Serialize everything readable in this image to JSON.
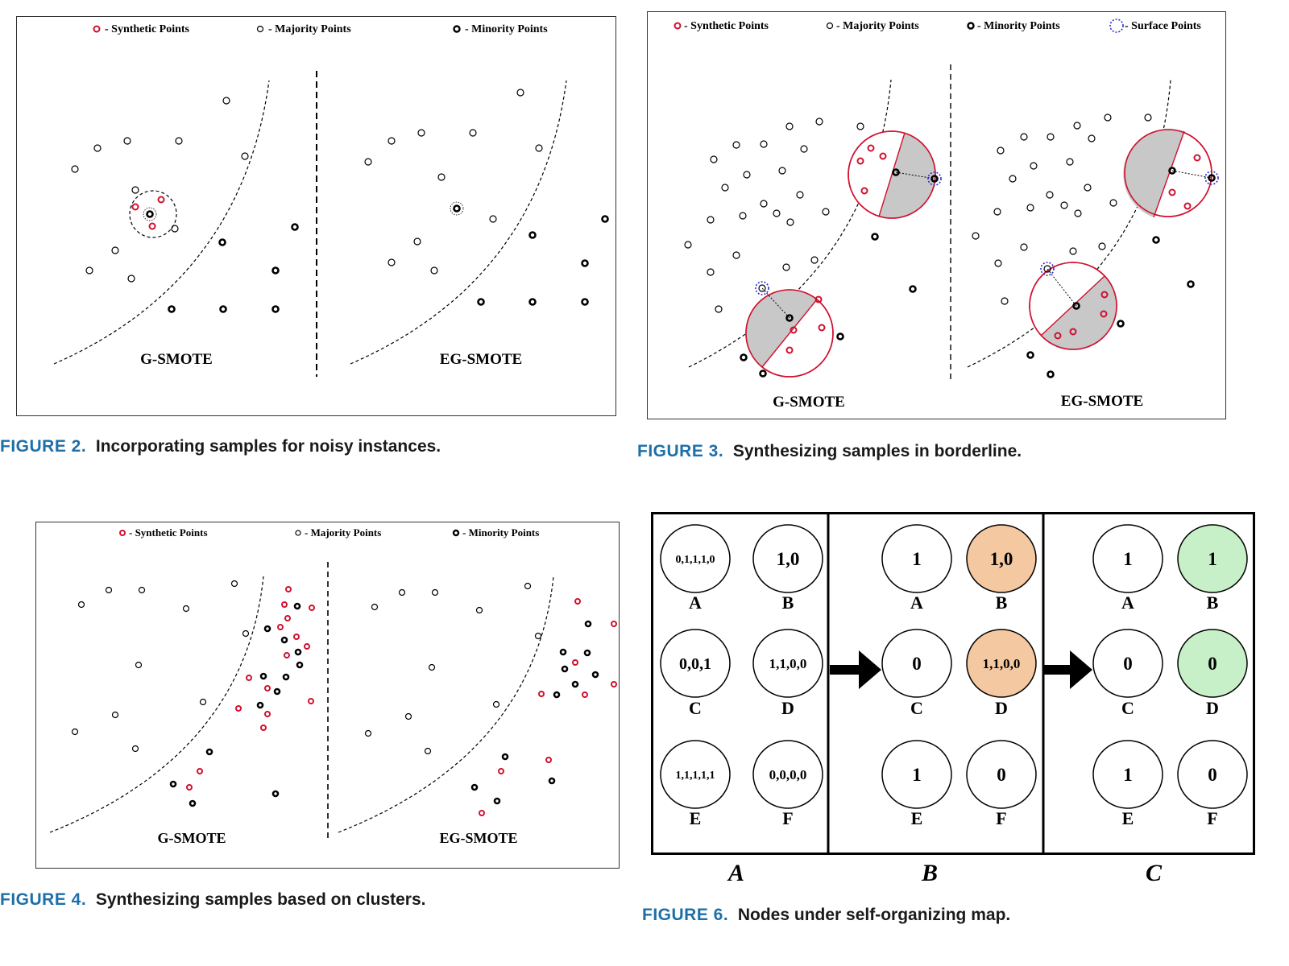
{
  "colors": {
    "synthetic": "#d0102e",
    "majority": "#000000",
    "minority": "#000000",
    "surface": "#2a2ad8",
    "shade": "#c8c8c8",
    "caption_number": "#1d6fa8",
    "som_orange": "#f4c8a0",
    "som_green": "#c8f0c8"
  },
  "fig2": {
    "legend": {
      "synthetic": "- Synthetic Points",
      "majority": "- Majority Points",
      "minority": "- Minority Points"
    },
    "left_label": "G-SMOTE",
    "right_label": "EG-SMOTE",
    "caption_number": "FIGURE 2.",
    "caption_text": "Incorporating samples for noisy instances."
  },
  "fig3": {
    "legend": {
      "synthetic": "- Synthetic Points",
      "majority": "- Majority Points",
      "minority": "- Minority Points",
      "surface": "- Surface Points"
    },
    "left_label": "G-SMOTE",
    "right_label": "EG-SMOTE",
    "caption_number": "FIGURE 3.",
    "caption_text": "Synthesizing samples in borderline."
  },
  "fig4": {
    "legend": {
      "synthetic": "- Synthetic Points",
      "majority": "- Majority Points",
      "minority": "- Minority Points"
    },
    "left_label": "G-SMOTE",
    "right_label": "EG-SMOTE",
    "caption_number": "FIGURE 4.",
    "caption_text": "Synthesizing samples based on clusters."
  },
  "fig6": {
    "panels": [
      {
        "label": "A",
        "nodes": [
          {
            "name": "A",
            "value": "0,1,1,1,0"
          },
          {
            "name": "B",
            "value": "1,0"
          },
          {
            "name": "C",
            "value": "0,0,1"
          },
          {
            "name": "D",
            "value": "1,1,0,0"
          },
          {
            "name": "E",
            "value": "1,1,1,1,1"
          },
          {
            "name": "F",
            "value": "0,0,0,0"
          }
        ]
      },
      {
        "label": "B",
        "nodes": [
          {
            "name": "A",
            "value": "1"
          },
          {
            "name": "B",
            "value": "1,0",
            "highlight": "orange"
          },
          {
            "name": "C",
            "value": "0"
          },
          {
            "name": "D",
            "value": "1,1,0,0",
            "highlight": "orange"
          },
          {
            "name": "E",
            "value": "1"
          },
          {
            "name": "F",
            "value": "0"
          }
        ]
      },
      {
        "label": "C",
        "nodes": [
          {
            "name": "A",
            "value": "1"
          },
          {
            "name": "B",
            "value": "1",
            "highlight": "green"
          },
          {
            "name": "C",
            "value": "0"
          },
          {
            "name": "D",
            "value": "0",
            "highlight": "green"
          },
          {
            "name": "E",
            "value": "1"
          },
          {
            "name": "F",
            "value": "0"
          }
        ]
      }
    ],
    "caption_number": "FIGURE 6.",
    "caption_text": "Nodes under self-organizing map."
  }
}
